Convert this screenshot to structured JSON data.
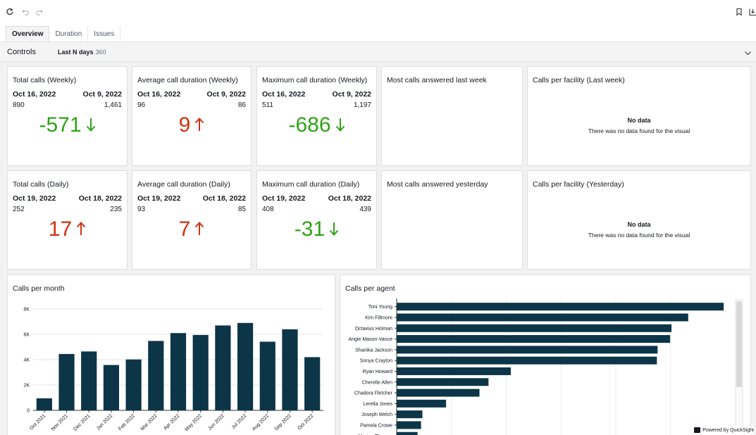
{
  "tabs": [
    {
      "label": "Overview",
      "active": true
    },
    {
      "label": "Duration",
      "active": false
    },
    {
      "label": "Issues",
      "active": false
    }
  ],
  "controls": {
    "label": "Controls",
    "param_label": "Last N days",
    "param_value": "360"
  },
  "kpis": [
    {
      "title": "Total calls (Weekly)",
      "date_left": "Oct 16, 2022",
      "date_right": "Oct 9, 2022",
      "val_left": "890",
      "val_right": "1,461",
      "delta": "-571",
      "direction": "down"
    },
    {
      "title": "Average call duration (Weekly)",
      "date_left": "Oct 16, 2022",
      "date_right": "Oct 9, 2022",
      "val_left": "96",
      "val_right": "86",
      "delta": "9",
      "direction": "up"
    },
    {
      "title": "Maximum call duration (Weekly)",
      "date_left": "Oct 16, 2022",
      "date_right": "Oct 9, 2022",
      "val_left": "511",
      "val_right": "1,197",
      "delta": "-686",
      "direction": "down"
    },
    {
      "title": "Total calls (Daily)",
      "date_left": "Oct 19, 2022",
      "date_right": "Oct 18, 2022",
      "val_left": "252",
      "val_right": "235",
      "delta": "17",
      "direction": "up"
    },
    {
      "title": "Average call duration (Daily)",
      "date_left": "Oct 19, 2022",
      "date_right": "Oct 18, 2022",
      "val_left": "93",
      "val_right": "85",
      "delta": "7",
      "direction": "up"
    },
    {
      "title": "Maximum call duration (Daily)",
      "date_left": "Oct 19, 2022",
      "date_right": "Oct 18, 2022",
      "val_left": "408",
      "val_right": "439",
      "delta": "-31",
      "direction": "down"
    }
  ],
  "empty_visuals": {
    "most_last_week": "Most calls answered last week",
    "most_yesterday": "Most calls answered yesterday",
    "facility_last_week": "Calls per facility (Last week)",
    "facility_yesterday": "Calls per facility (Yesterday)",
    "no_data_title": "No data",
    "no_data_text": "There was no data found for the visual"
  },
  "colors": {
    "bar": "#0c3547",
    "up": "#d13212",
    "down": "#2ea415"
  },
  "footer": {
    "powered": "Powered by QuickSight"
  },
  "chart_data": [
    {
      "type": "bar",
      "title": "Calls per month",
      "categories": [
        "Oct 2021",
        "Nov 2021",
        "Dec 2021",
        "Jan 2022",
        "Feb 2022",
        "Mar 2022",
        "Apr 2022",
        "May 2022",
        "Jun 2022",
        "Jul 2022",
        "Aug 2022",
        "Sep 2022",
        "Oct 2022"
      ],
      "values": [
        950,
        4450,
        4650,
        3580,
        4020,
        5480,
        6100,
        5950,
        6700,
        6900,
        5420,
        6400,
        4200
      ],
      "yticks": [
        "0",
        "2K",
        "4K",
        "6K",
        "8K"
      ],
      "ylim": [
        0,
        8000
      ],
      "grid": true
    },
    {
      "type": "bar",
      "orientation": "horizontal",
      "title": "Calls per agent",
      "categories": [
        "Toni Young",
        "Kim Fillmore",
        "Octavius Holman",
        "Angie Mason-Vance",
        "Shanika Jackson",
        "Sonya Crayton",
        "Ryan Howard",
        "Cherelle Allen",
        "Chadora Fletcher",
        "Lerella Jones",
        "Joseph Welch",
        "Pamela Crowe",
        "Marian Thomas"
      ],
      "values": [
        470,
        419,
        395,
        393,
        375,
        374,
        164,
        132,
        119,
        71,
        37,
        35,
        30
      ],
      "xlim": [
        0,
        480
      ],
      "grid": true
    }
  ]
}
